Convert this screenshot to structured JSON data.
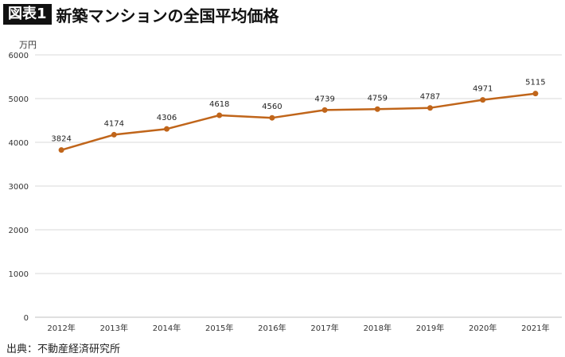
{
  "figure": {
    "label": "図表1",
    "title": "新築マンションの全国平均価格",
    "source": "出典：不動産経済研究所"
  },
  "chart_data": {
    "type": "line",
    "title": "新築マンションの全国平均価格",
    "ylabel": "万円",
    "xlabel": "",
    "categories": [
      "2012年",
      "2013年",
      "2014年",
      "2015年",
      "2016年",
      "2017年",
      "2018年",
      "2019年",
      "2020年",
      "2021年"
    ],
    "series": [
      {
        "name": "",
        "values": [
          3824,
          4174,
          4306,
          4618,
          4560,
          4739,
          4759,
          4787,
          4971,
          5115
        ],
        "color": "#c0651a"
      }
    ],
    "yticks": [
      0,
      1000,
      2000,
      3000,
      4000,
      5000,
      6000
    ],
    "ylim": [
      0,
      6000
    ],
    "grid": true,
    "data_labels": true
  }
}
